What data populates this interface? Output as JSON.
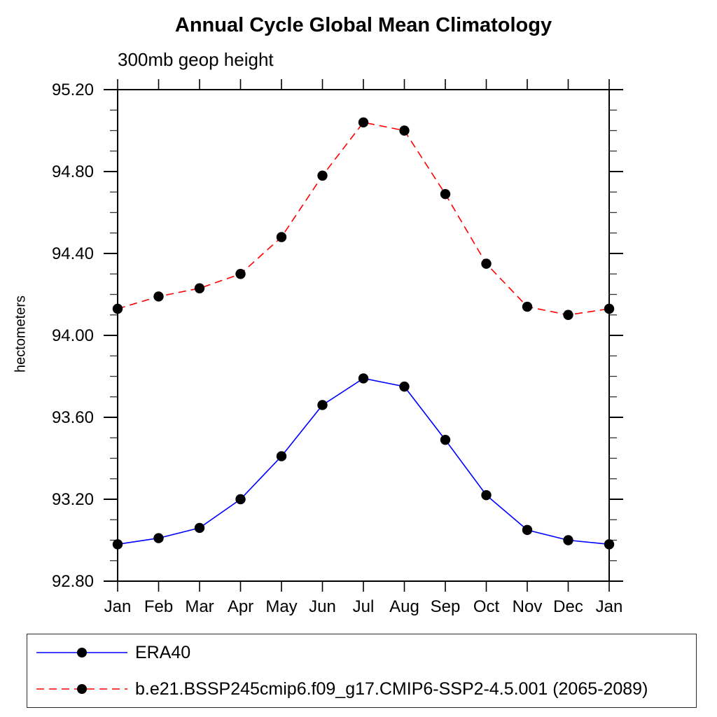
{
  "page": {
    "background": "#ffffff",
    "text_color": "#000000"
  },
  "chart_data": {
    "type": "line",
    "title": "Annual Cycle Global Mean Climatology",
    "subtitle": "300mb geop height",
    "ylabel": "hectometers",
    "xlabel": "",
    "categories": [
      "Jan",
      "Feb",
      "Mar",
      "Apr",
      "May",
      "Jun",
      "Jul",
      "Aug",
      "Sep",
      "Oct",
      "Nov",
      "Dec",
      "Jan"
    ],
    "ylim": [
      92.8,
      95.2
    ],
    "y_major_ticks": [
      95.2,
      94.8,
      94.4,
      94.0,
      93.6,
      93.2,
      92.8
    ],
    "y_tick_format_decimals": 2,
    "y_minor_step": 0.1,
    "grid": false,
    "frame": "box-with-outward-ticks",
    "legend_position": "bottom-left-box",
    "series": [
      {
        "name": "ERA40",
        "color": "#0000ff",
        "line_style": "solid",
        "marker": "filled-circle",
        "marker_color": "#000000",
        "values": [
          92.98,
          93.01,
          93.06,
          93.2,
          93.41,
          93.66,
          93.79,
          93.75,
          93.49,
          93.22,
          93.05,
          93.0,
          92.98
        ]
      },
      {
        "name": "b.e21.BSSP245cmip6.f09_g17.CMIP6-SSP2-4.5.001 (2065-2089)",
        "color": "#ff0000",
        "line_style": "dashed",
        "marker": "filled-circle",
        "marker_color": "#000000",
        "values": [
          94.13,
          94.19,
          94.23,
          94.3,
          94.48,
          94.78,
          95.04,
          95.0,
          94.69,
          94.35,
          94.14,
          94.1,
          94.13
        ]
      }
    ]
  }
}
